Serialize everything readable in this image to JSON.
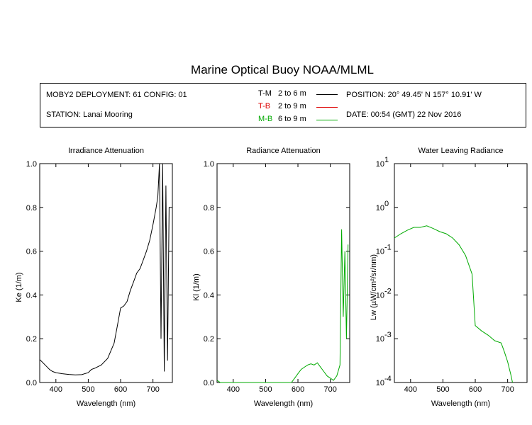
{
  "title": "Marine Optical Buoy NOAA/MLML",
  "info": {
    "deployment": "MOBY2 DEPLOYMENT: 61 CONFIG: 01",
    "station": "STATION: Lanai Mooring",
    "position": "POSITION: 20° 49.45' N   157° 10.91' W",
    "date": "DATE: 00:54 (GMT) 22 Nov 2016"
  },
  "legend": [
    {
      "name": "T-M",
      "range": "2 to 6  m",
      "color": "#000000"
    },
    {
      "name": "T-B",
      "range": "2 to 9  m",
      "color": "#dd0000"
    },
    {
      "name": "M-B",
      "range": "6 to 9  m",
      "color": "#00aa00"
    }
  ],
  "chart_data": [
    {
      "type": "line",
      "title": "Irradiance Attenuation",
      "xlabel": "Wavelength (nm)",
      "ylabel": "Ke  (1/m)",
      "xlim": [
        350,
        760
      ],
      "ylim": [
        0,
        1
      ],
      "xticks": [
        "400",
        "500",
        "600",
        "700"
      ],
      "yticks": [
        "0.0",
        "0.2",
        "0.4",
        "0.6",
        "0.8",
        "1.0"
      ],
      "series": [
        {
          "name": "T-M",
          "color": "#000000",
          "x": [
            350,
            360,
            370,
            380,
            390,
            400,
            420,
            440,
            460,
            480,
            500,
            510,
            520,
            540,
            560,
            580,
            590,
            600,
            610,
            620,
            630,
            640,
            650,
            660,
            670,
            680,
            690,
            700,
            705,
            710,
            715,
            720,
            725,
            730,
            735,
            740,
            745,
            750
          ],
          "y": [
            0.105,
            0.09,
            0.075,
            0.06,
            0.05,
            0.045,
            0.04,
            0.037,
            0.035,
            0.036,
            0.045,
            0.06,
            0.065,
            0.08,
            0.11,
            0.18,
            0.26,
            0.34,
            0.35,
            0.37,
            0.42,
            0.46,
            0.5,
            0.52,
            0.56,
            0.6,
            0.65,
            0.72,
            0.76,
            0.8,
            0.85,
            1.0,
            0.2,
            1.0,
            0.05,
            0.9,
            0.1,
            0.8
          ]
        }
      ]
    },
    {
      "type": "line",
      "title": "Radiance Attenuation",
      "xlabel": "Wavelength (nm)",
      "ylabel": "Kl  (1/m)",
      "xlim": [
        350,
        760
      ],
      "ylim": [
        0,
        1
      ],
      "xticks": [
        "400",
        "500",
        "600",
        "700"
      ],
      "yticks": [
        "0.0",
        "0.2",
        "0.4",
        "0.6",
        "0.8",
        "1.0"
      ],
      "series": [
        {
          "name": "M-B",
          "color": "#00aa00",
          "x": [
            350,
            360,
            370,
            580,
            590,
            600,
            610,
            620,
            630,
            640,
            650,
            660,
            670,
            680,
            690,
            700,
            710,
            720,
            730,
            735,
            740,
            745,
            750,
            755
          ],
          "y": [
            0.01,
            0.0,
            0.0,
            0.0,
            0.02,
            0.04,
            0.06,
            0.07,
            0.08,
            0.085,
            0.08,
            0.09,
            0.07,
            0.05,
            0.03,
            0.02,
            0.01,
            0.03,
            0.08,
            0.7,
            0.3,
            0.6,
            0.2,
            0.63
          ]
        }
      ]
    },
    {
      "type": "line",
      "title": "Water Leaving Radiance",
      "xlabel": "Wavelength (nm)",
      "ylabel": "Lw  (µW/cm²/sr/nm)",
      "xlim": [
        350,
        760
      ],
      "ylim": [
        0.0001,
        10
      ],
      "yscale": "log",
      "xticks": [
        "400",
        "500",
        "600",
        "700"
      ],
      "yticks": [
        "10^-4",
        "10^-3",
        "10^-2",
        "10^-1",
        "10^0",
        "10^1"
      ],
      "series": [
        {
          "name": "M-B",
          "color": "#00aa00",
          "x": [
            350,
            370,
            390,
            410,
            430,
            450,
            470,
            490,
            510,
            530,
            550,
            570,
            590,
            600,
            620,
            640,
            660,
            680,
            690,
            700,
            710,
            715
          ],
          "y": [
            0.2,
            0.25,
            0.3,
            0.35,
            0.35,
            0.38,
            0.33,
            0.28,
            0.25,
            0.2,
            0.14,
            0.08,
            0.03,
            0.002,
            0.0015,
            0.0012,
            0.0009,
            0.0008,
            0.0005,
            0.0003,
            0.00015,
            0.0001
          ]
        }
      ]
    }
  ]
}
